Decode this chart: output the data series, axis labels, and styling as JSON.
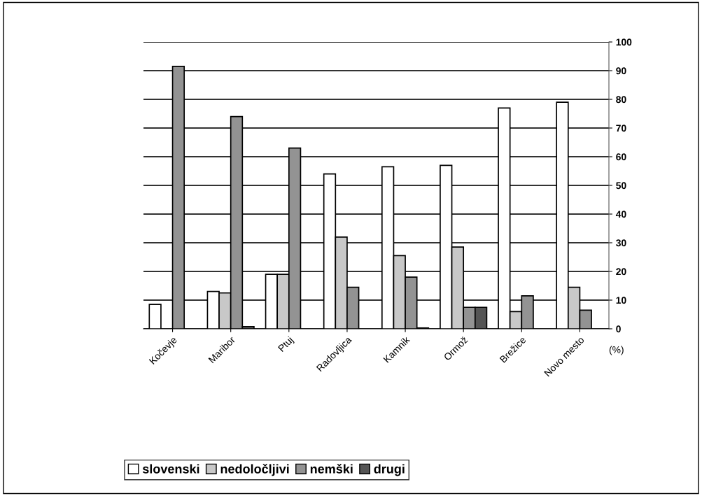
{
  "chart_data": {
    "type": "bar",
    "ylabel": "(%)",
    "categories": [
      "Kočevje",
      "Maribor",
      "Ptuj",
      "Radovljica",
      "Kamnik",
      "Ormož",
      "Brežice",
      "Novo mesto"
    ],
    "series": [
      {
        "name": "slovenski",
        "color": "#ffffff",
        "values": [
          8.5,
          13,
          19,
          54,
          56.5,
          57,
          77,
          79
        ]
      },
      {
        "name": "nedoločljivi",
        "color": "#c8c8c8",
        "values": [
          null,
          12.5,
          19,
          32,
          25.5,
          28.5,
          6,
          14.5
        ]
      },
      {
        "name": "nemški",
        "color": "#939393",
        "values": [
          91.5,
          74,
          63,
          14.5,
          18,
          7.5,
          11.5,
          6.5
        ]
      },
      {
        "name": "drugi",
        "color": "#555555",
        "values": [
          null,
          0.8,
          null,
          null,
          0.3,
          7.5,
          null,
          null
        ]
      }
    ],
    "ylim": [
      0,
      100
    ],
    "yticks": [
      0,
      10,
      20,
      30,
      40,
      50,
      60,
      70,
      80,
      90,
      100
    ],
    "grid": "y",
    "legend": "bottom"
  }
}
